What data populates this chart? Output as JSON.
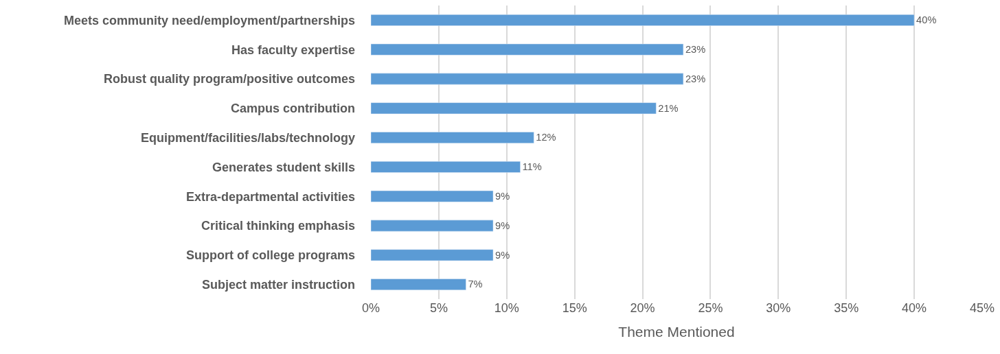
{
  "chart_data": {
    "type": "bar",
    "orientation": "horizontal",
    "xlabel": "Theme Mentioned",
    "categories": [
      "Meets community need/employment/partnerships",
      "Has faculty expertise",
      "Robust quality program/positive outcomes",
      "Campus contribution",
      "Equipment/facilities/labs/technology",
      "Generates student skills",
      "Extra-departmental activities",
      "Critical thinking emphasis",
      "Support of college programs",
      "Subject matter instruction"
    ],
    "values": [
      40,
      23,
      23,
      21,
      12,
      11,
      9,
      9,
      9,
      7
    ],
    "value_labels": [
      "40%",
      "23%",
      "23%",
      "21%",
      "12%",
      "11%",
      "9%",
      "9%",
      "9%",
      "7%"
    ],
    "color": "#5b9bd5",
    "xlim": [
      0,
      45
    ],
    "xticks": [
      {
        "value": 0,
        "label": "0%"
      },
      {
        "value": 5,
        "label": "5%"
      },
      {
        "value": 10,
        "label": "10%"
      },
      {
        "value": 15,
        "label": "15%"
      },
      {
        "value": 20,
        "label": "20%"
      },
      {
        "value": 25,
        "label": "25%"
      },
      {
        "value": 30,
        "label": "30%"
      },
      {
        "value": 35,
        "label": "35%"
      },
      {
        "value": 40,
        "label": "40%"
      },
      {
        "value": 45,
        "label": "45%"
      }
    ],
    "grid": "x"
  }
}
